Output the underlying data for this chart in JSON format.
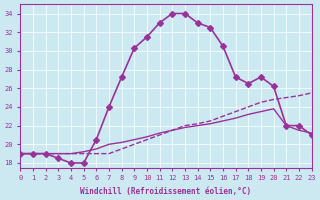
{
  "xlabel": "Windchill (Refroidissement éolien,°C)",
  "background_color": "#cce8f0",
  "line_color": "#993399",
  "xlim": [
    0,
    23
  ],
  "ylim": [
    17.5,
    35
  ],
  "yticks": [
    18,
    20,
    22,
    24,
    26,
    28,
    30,
    32,
    34
  ],
  "xticks": [
    0,
    1,
    2,
    3,
    4,
    5,
    6,
    7,
    8,
    9,
    10,
    11,
    12,
    13,
    14,
    15,
    16,
    17,
    18,
    19,
    20,
    21,
    22,
    23
  ],
  "series": [
    {
      "x": [
        0,
        1,
        2,
        3,
        4,
        5,
        6,
        7,
        8,
        9,
        10,
        11,
        12,
        13,
        14,
        15,
        16,
        17,
        18,
        19,
        20,
        21,
        22,
        23
      ],
      "y": [
        19,
        19,
        19,
        18.5,
        18,
        18,
        20.5,
        24,
        27.2,
        30.3,
        31.5,
        33,
        34,
        34,
        33,
        32.5,
        30.5,
        27.2,
        26.5,
        27.2,
        26.2,
        22,
        22,
        21
      ],
      "marker": "D",
      "markersize": 3,
      "linewidth": 1.2,
      "style": "-"
    },
    {
      "x": [
        0,
        1,
        2,
        3,
        4,
        5,
        6,
        7,
        8,
        9,
        10,
        11,
        12,
        13,
        14,
        15,
        16,
        17,
        18,
        19,
        20,
        21,
        22,
        23
      ],
      "y": [
        19,
        19,
        19,
        19,
        19,
        19,
        19,
        19,
        19.5,
        20,
        20.5,
        21,
        21.5,
        22,
        22.2,
        22.5,
        23,
        23.5,
        24,
        24.5,
        24.8,
        25,
        25.2,
        25.5
      ],
      "marker": null,
      "markersize": 0,
      "linewidth": 1.0,
      "style": "--"
    },
    {
      "x": [
        0,
        1,
        2,
        3,
        4,
        5,
        6,
        7,
        8,
        9,
        10,
        11,
        12,
        13,
        14,
        15,
        16,
        17,
        18,
        19,
        20,
        21,
        22,
        23
      ],
      "y": [
        19,
        19,
        19,
        19,
        19,
        19.2,
        19.5,
        20,
        20.2,
        20.5,
        20.8,
        21.2,
        21.5,
        21.8,
        22,
        22.2,
        22.5,
        22.8,
        23.2,
        23.5,
        23.8,
        22,
        21.5,
        21.2
      ],
      "marker": null,
      "markersize": 0,
      "linewidth": 1.0,
      "style": "-"
    }
  ]
}
